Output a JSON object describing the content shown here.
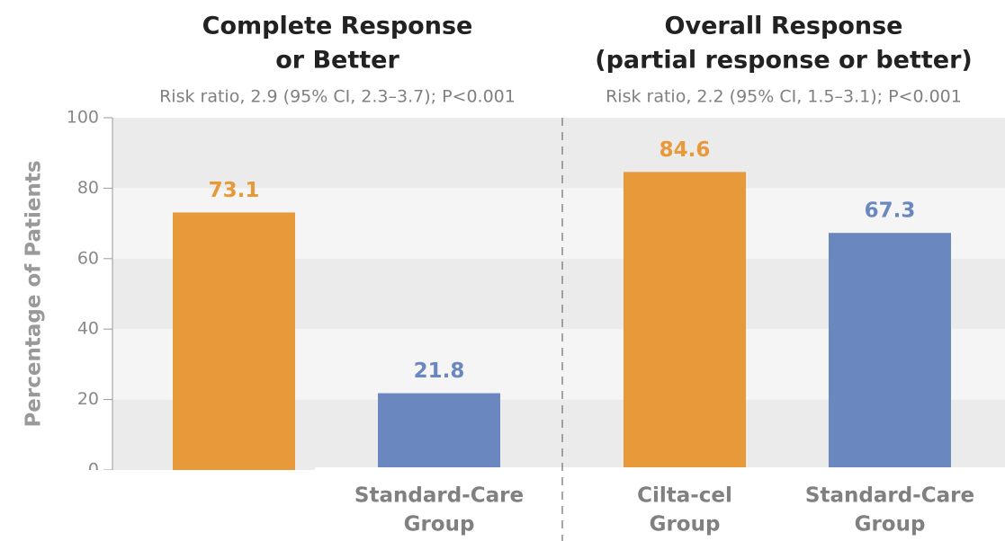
{
  "chart_data": [
    {
      "type": "bar",
      "title": [
        "Complete Response",
        "or Better"
      ],
      "subtitle": "Risk ratio, 2.9 (95% CI, 2.3–3.7); P<0.001",
      "y_label": "Percentage of Patients",
      "categories": [
        null,
        [
          "Standard-Care",
          "Group"
        ]
      ],
      "values": [
        73.1,
        21.8
      ],
      "colors": [
        "#e8993a",
        "#6b87bf"
      ],
      "ylim": [
        0,
        100
      ],
      "yticks": [
        0,
        20,
        40,
        60,
        80,
        100
      ]
    },
    {
      "type": "bar",
      "title": [
        "Overall Response",
        "(partial response or better)"
      ],
      "subtitle": "Risk ratio, 2.2 (95% CI, 1.5–3.1); P<0.001",
      "categories": [
        [
          "Cilta-cel",
          "Group"
        ],
        [
          "Standard-Care",
          "Group"
        ]
      ],
      "values": [
        84.6,
        67.3
      ],
      "colors": [
        "#e8993a",
        "#6b87bf"
      ],
      "ylim": [
        0,
        100
      ],
      "yticks": [
        0,
        20,
        40,
        60,
        80,
        100
      ]
    }
  ]
}
